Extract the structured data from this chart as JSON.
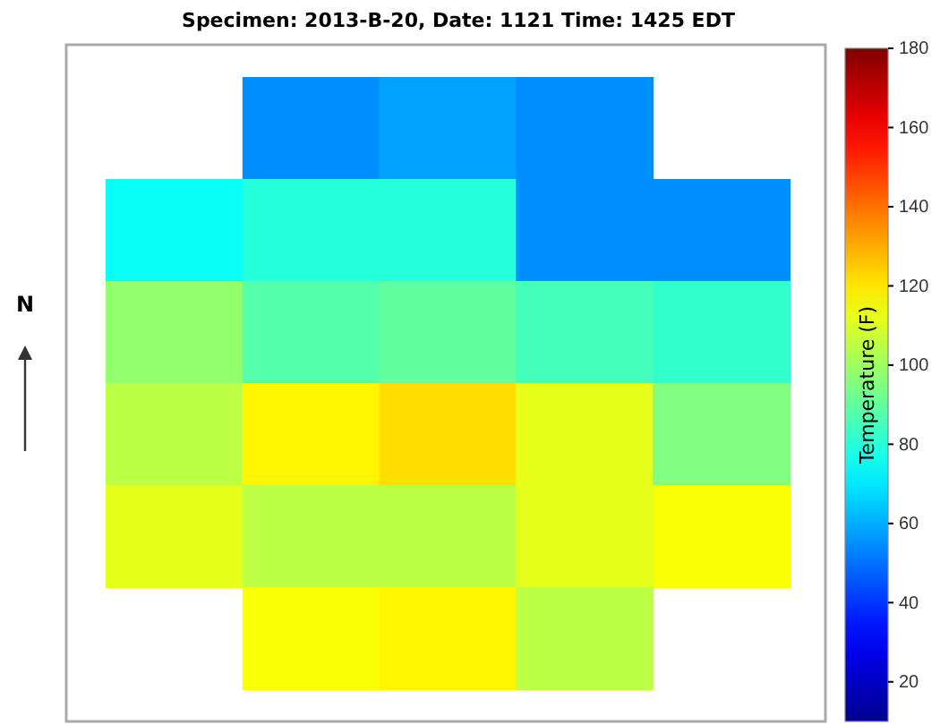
{
  "chart_data": {
    "type": "heatmap",
    "title": "Specimen: 2013-B-20, Date: 1121 Time: 1425 EDT",
    "clabel": "Temperature (F)",
    "categories": [
      null,
      null,
      null,
      null,
      null
    ],
    "y_categories": [
      null,
      null,
      null,
      null,
      null,
      null
    ],
    "cells": [
      [
        null,
        55,
        58,
        55,
        null
      ],
      [
        75,
        80,
        80,
        55,
        55
      ],
      [
        98,
        88,
        90,
        85,
        82
      ],
      [
        105,
        118,
        122,
        112,
        95
      ],
      [
        112,
        105,
        105,
        112,
        115
      ],
      [
        null,
        115,
        118,
        105,
        null
      ]
    ],
    "clim": [
      10,
      180
    ],
    "cticks": [
      20,
      40,
      60,
      80,
      100,
      120,
      140,
      160,
      180
    ],
    "annotations": [
      "N"
    ]
  }
}
